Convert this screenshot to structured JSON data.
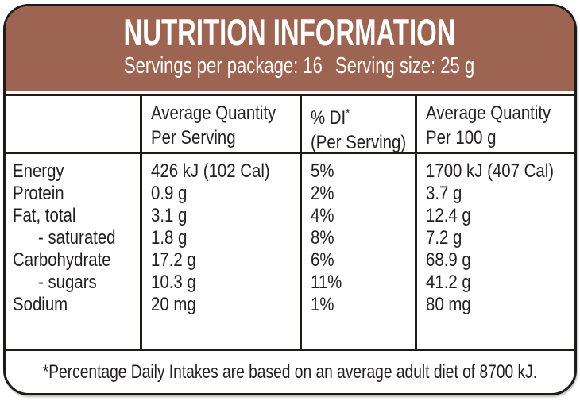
{
  "header": {
    "title": "NUTRITION INFORMATION",
    "servings_per_package": "Servings per package: 16",
    "serving_size": "Serving size: 25 g"
  },
  "table": {
    "columns": {
      "nutrient": "",
      "per_serving_line1": "Average Quantity",
      "per_serving_line2": "Per Serving",
      "percent_di_line1": "% DI",
      "percent_di_asterisk": "*",
      "percent_di_line2": "(Per Serving)",
      "per_100g_line1": "Average Quantity",
      "per_100g_line2": "Per 100 g"
    },
    "rows": [
      {
        "nutrient": "Energy",
        "per_serving": "426 kJ (102 Cal)",
        "percent_di": "5%",
        "per_100g": "1700 kJ (407 Cal)",
        "indent": false
      },
      {
        "nutrient": "Protein",
        "per_serving": "0.9 g",
        "percent_di": "2%",
        "per_100g": "3.7 g",
        "indent": false
      },
      {
        "nutrient": "Fat, total",
        "per_serving": "3.1 g",
        "percent_di": "4%",
        "per_100g": "12.4 g",
        "indent": false
      },
      {
        "nutrient": "- saturated",
        "per_serving": "1.8 g",
        "percent_di": "8%",
        "per_100g": "7.2 g",
        "indent": true
      },
      {
        "nutrient": "Carbohydrate",
        "per_serving": "17.2 g",
        "percent_di": "6%",
        "per_100g": "68.9 g",
        "indent": false
      },
      {
        "nutrient": "- sugars",
        "per_serving": "10.3 g",
        "percent_di": "11%",
        "per_100g": "41.2 g",
        "indent": true
      },
      {
        "nutrient": "Sodium",
        "per_serving": "20 mg",
        "percent_di": "1%",
        "per_100g": "80 mg",
        "indent": false
      }
    ]
  },
  "footer": {
    "note": "*Percentage Daily Intakes are based on an average adult diet of 8700 kJ."
  },
  "colors": {
    "header_brown": "#9c6451",
    "border_black": "#1e1b19",
    "text_dark": "#231f20",
    "background": "#ffffff"
  }
}
